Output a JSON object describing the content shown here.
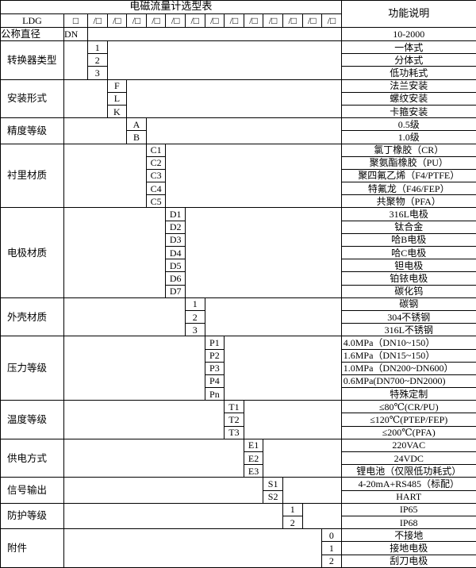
{
  "title": "电磁流量计选型表",
  "func_header": "功能说明",
  "model_row": {
    "prefix": "LDG",
    "first_box": "□",
    "box": "/□",
    "box_count": 13
  },
  "nominal": {
    "label": "公称直径",
    "code": "DN",
    "desc": "10-2000"
  },
  "sections": [
    {
      "label": "转换器类型",
      "col": 1,
      "rows": [
        {
          "code": "1",
          "desc": "一体式"
        },
        {
          "code": "2",
          "desc": "分体式"
        },
        {
          "code": "3",
          "desc": "低功耗式"
        }
      ]
    },
    {
      "label": "安装形式",
      "col": 2,
      "rows": [
        {
          "code": "F",
          "desc": "法兰安装"
        },
        {
          "code": "L",
          "desc": "螺纹安装"
        },
        {
          "code": "K",
          "desc": "卡箍安装"
        }
      ]
    },
    {
      "label": "精度等级",
      "col": 3,
      "rows": [
        {
          "code": "A",
          "desc": "0.5级"
        },
        {
          "code": "B",
          "desc": "1.0级"
        }
      ]
    },
    {
      "label": "衬里材质",
      "col": 4,
      "rows": [
        {
          "code": "C1",
          "desc": "氯丁橡胶（CR）"
        },
        {
          "code": "C2",
          "desc": "聚氨酯橡胶（PU）"
        },
        {
          "code": "C3",
          "desc": "聚四氟乙烯（F4/PTFE）"
        },
        {
          "code": "C4",
          "desc": "特氟龙（F46/FEP）"
        },
        {
          "code": "C5",
          "desc": "共聚物（PFA）"
        }
      ]
    },
    {
      "label": "电极材质",
      "col": 5,
      "rows": [
        {
          "code": "D1",
          "desc": "316L电极"
        },
        {
          "code": "D2",
          "desc": "钛合金"
        },
        {
          "code": "D3",
          "desc": "哈B电极"
        },
        {
          "code": "D4",
          "desc": "哈C电极"
        },
        {
          "code": "D5",
          "desc": "钽电极"
        },
        {
          "code": "D6",
          "desc": "铂铱电极"
        },
        {
          "code": "D7",
          "desc": "碳化钨"
        }
      ]
    },
    {
      "label": "外壳材质",
      "col": 6,
      "rows": [
        {
          "code": "1",
          "desc": "碳钢"
        },
        {
          "code": "2",
          "desc": "304不锈钢"
        },
        {
          "code": "3",
          "desc": "316L不锈钢"
        }
      ]
    },
    {
      "label": "压力等级",
      "col": 7,
      "rows": [
        {
          "code": "P1",
          "desc": "4.0MPa（DN10~150）",
          "left": true
        },
        {
          "code": "P2",
          "desc": "1.6MPa（DN15~150）",
          "left": true
        },
        {
          "code": "P3",
          "desc": "1.0MPa（DN200~DN600）",
          "left": true
        },
        {
          "code": "P4",
          "desc": "0.6MPa(DN700~DN2000)",
          "left": true
        },
        {
          "code": "Pn",
          "desc": "特殊定制"
        }
      ]
    },
    {
      "label": "温度等级",
      "col": 8,
      "rows": [
        {
          "code": "T1",
          "desc": "≤80℃(CR/PU)"
        },
        {
          "code": "T2",
          "desc": "≤120℃(PTEP/FEP)"
        },
        {
          "code": "T3",
          "desc": "≤200℃(PFA)"
        }
      ]
    },
    {
      "label": "供电方式",
      "col": 9,
      "rows": [
        {
          "code": "E1",
          "desc": "220VAC"
        },
        {
          "code": "E2",
          "desc": "24VDC"
        },
        {
          "code": "E3",
          "desc": "锂电池（仅限低功耗式）"
        }
      ]
    },
    {
      "label": "信号输出",
      "col": 10,
      "rows": [
        {
          "code": "S1",
          "desc": "4-20mA+RS485（标配）"
        },
        {
          "code": "S2",
          "desc": "HART"
        }
      ]
    },
    {
      "label": "防护等级",
      "col": 11,
      "rows": [
        {
          "code": "1",
          "desc": "IP65"
        },
        {
          "code": "2",
          "desc": "IP68"
        }
      ]
    },
    {
      "label": "附件",
      "col": 13,
      "rows": [
        {
          "code": "0",
          "desc": "不接地"
        },
        {
          "code": "1",
          "desc": "接地电极"
        },
        {
          "code": "2",
          "desc": "刮刀电极"
        }
      ]
    }
  ]
}
